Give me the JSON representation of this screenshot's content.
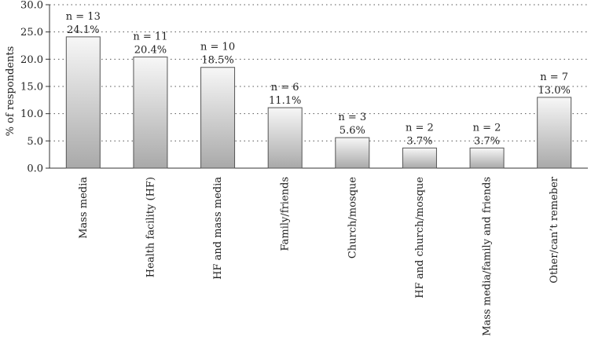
{
  "chart_data": {
    "type": "bar",
    "ylabel": "% of respondents",
    "ylim": [
      0,
      30
    ],
    "yticks": [
      "0.0",
      "5.0",
      "10.0",
      "15.0",
      "20.0",
      "25.0",
      "30.0"
    ],
    "ytick_values": [
      0,
      5,
      10,
      15,
      20,
      25,
      30
    ],
    "grid": "horizontal-dotted",
    "categories": [
      "Mass media",
      "Health facility (HF)",
      "HF and mass media",
      "Family/friends",
      "Church/mosque",
      "HF and church/mosque",
      "Mass media/family and friends",
      "Other/can’t remeber"
    ],
    "values": [
      24.1,
      20.4,
      18.5,
      11.1,
      5.6,
      3.7,
      3.7,
      13.0
    ],
    "n_labels": [
      "n = 13",
      "n = 11",
      "n = 10",
      "n = 6",
      "n = 3",
      "n = 2",
      "n = 2",
      "n = 7"
    ],
    "pct_labels": [
      "24.1%",
      "20.4%",
      "18.5%",
      "11.1%",
      "5.6%",
      "3.7%",
      "3.7%",
      "13.0%"
    ]
  }
}
